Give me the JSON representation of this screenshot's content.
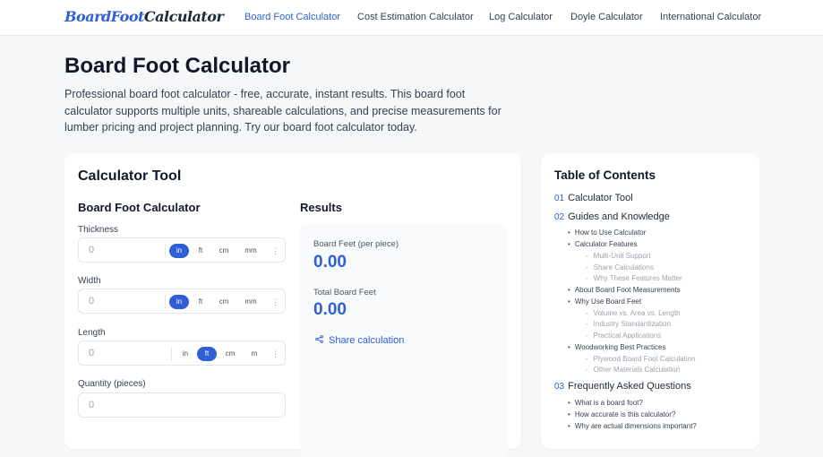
{
  "header": {
    "logo_part1": "BoardFoot",
    "logo_part2": "Calculator",
    "nav": [
      "Board Foot Calculator",
      "Cost Estimation Calculator",
      "Log Calculator",
      "Doyle Calculator",
      "International Calculator"
    ]
  },
  "page": {
    "title": "Board Foot Calculator",
    "intro": "Professional board foot calculator - free, accurate, instant results. This board foot calculator supports multiple units, shareable calculations, and precise measurements for lumber pricing and project planning. Try our board foot calculator today."
  },
  "calculator": {
    "card_title": "Calculator Tool",
    "form_title": "Board Foot Calculator",
    "thickness": {
      "label": "Thickness",
      "placeholder": "0",
      "units": [
        "in",
        "ft",
        "cm",
        "mm"
      ],
      "selected": "in"
    },
    "width": {
      "label": "Width",
      "placeholder": "0",
      "units": [
        "in",
        "ft",
        "cm",
        "mm"
      ],
      "selected": "in"
    },
    "length": {
      "label": "Length",
      "placeholder": "0",
      "units": [
        "in",
        "ft",
        "cm",
        "m"
      ],
      "selected": "ft"
    },
    "quantity": {
      "label": "Quantity (pieces)",
      "placeholder": "0"
    },
    "more_icon": "⋮"
  },
  "results": {
    "title": "Results",
    "per_piece_label": "Board Feet (per piece)",
    "per_piece_value": "0.00",
    "total_label": "Total Board Feet",
    "total_value": "0.00",
    "share_label": "Share calculation"
  },
  "toc": {
    "title": "Table of Contents",
    "s1": {
      "num": "01",
      "label": "Calculator Tool"
    },
    "s2": {
      "num": "02",
      "label": "Guides and Knowledge"
    },
    "s2_items": [
      "How to Use Calculator",
      "Calculator Features",
      "Multi-Unit Support",
      "Share Calculations",
      "Why These Features Matter",
      "About Board Foot Measurements",
      "Why Use Board Feet",
      "Volume vs. Area vs. Length",
      "Industry Standardization",
      "Practical Applications",
      "Woodworking Best Practices",
      "Plywood Board Foot Calculation",
      "Other Materials Calculation"
    ],
    "s3": {
      "num": "03",
      "label": "Frequently Asked Questions"
    },
    "s3_items": [
      "What is a board foot?",
      "How accurate is this calculator?",
      "Why are actual dimensions important?"
    ]
  },
  "colors": {
    "accent": "#2f5fd6"
  }
}
